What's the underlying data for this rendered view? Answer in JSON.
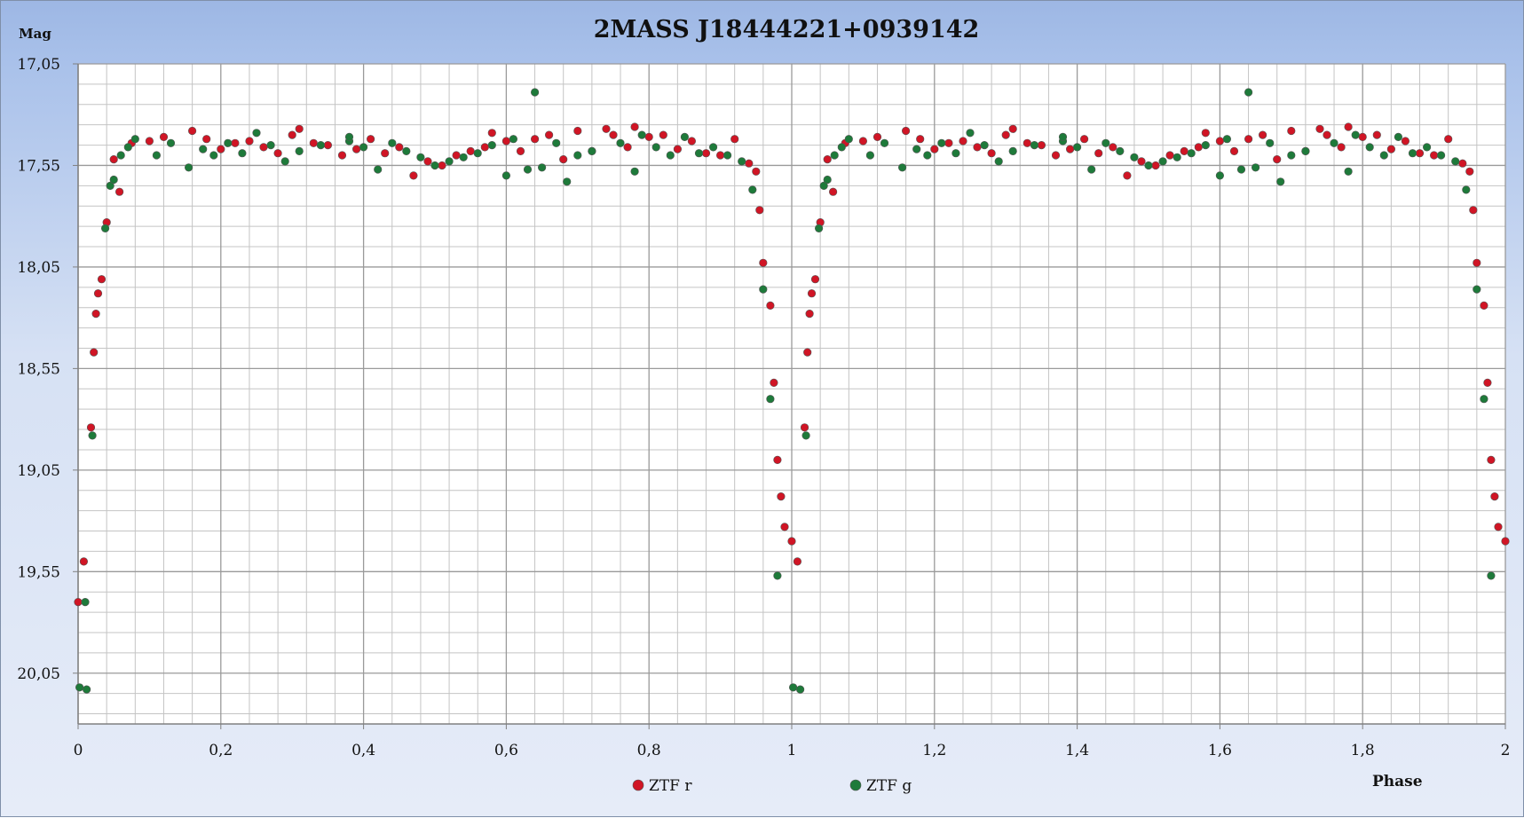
{
  "chart_data": {
    "type": "scatter",
    "title": "2MASS J18444221+0939142",
    "ylabel": "Mag",
    "xlabel": "Phase",
    "xlim": [
      0,
      2
    ],
    "ylim": [
      20.3,
      17.05
    ],
    "y_inverted": true,
    "x_ticks": [
      "0",
      "0,2",
      "0,4",
      "0,6",
      "0,8",
      "1",
      "1,2",
      "1,4",
      "1,6",
      "1,8",
      "2"
    ],
    "y_ticks": [
      "17,05",
      "17,55",
      "18,05",
      "18,55",
      "19,05",
      "19,55",
      "20,05"
    ],
    "grid": true,
    "legend_position": "bottom",
    "series": [
      {
        "name": "ZTF r",
        "color": "#d01525",
        "points": [
          [
            0.0,
            19.7
          ],
          [
            0.008,
            19.5
          ],
          [
            0.018,
            18.84
          ],
          [
            0.022,
            18.47
          ],
          [
            0.025,
            18.28
          ],
          [
            0.028,
            18.18
          ],
          [
            0.033,
            18.11
          ],
          [
            0.04,
            17.83
          ],
          [
            0.05,
            17.52
          ],
          [
            0.058,
            17.68
          ],
          [
            0.075,
            17.44
          ],
          [
            0.1,
            17.43
          ],
          [
            0.12,
            17.41
          ],
          [
            0.16,
            17.38
          ],
          [
            0.18,
            17.42
          ],
          [
            0.2,
            17.47
          ],
          [
            0.22,
            17.44
          ],
          [
            0.24,
            17.43
          ],
          [
            0.26,
            17.46
          ],
          [
            0.28,
            17.49
          ],
          [
            0.3,
            17.4
          ],
          [
            0.31,
            17.37
          ],
          [
            0.33,
            17.44
          ],
          [
            0.35,
            17.45
          ],
          [
            0.37,
            17.5
          ],
          [
            0.39,
            17.47
          ],
          [
            0.41,
            17.42
          ],
          [
            0.43,
            17.49
          ],
          [
            0.45,
            17.46
          ],
          [
            0.47,
            17.6
          ],
          [
            0.49,
            17.53
          ],
          [
            0.51,
            17.55
          ],
          [
            0.53,
            17.5
          ],
          [
            0.55,
            17.48
          ],
          [
            0.57,
            17.46
          ],
          [
            0.58,
            17.39
          ],
          [
            0.6,
            17.43
          ],
          [
            0.62,
            17.48
          ],
          [
            0.64,
            17.42
          ],
          [
            0.66,
            17.4
          ],
          [
            0.68,
            17.52
          ],
          [
            0.7,
            17.38
          ],
          [
            0.72,
            17.48
          ],
          [
            0.74,
            17.37
          ],
          [
            0.75,
            17.4
          ],
          [
            0.77,
            17.46
          ],
          [
            0.78,
            17.36
          ],
          [
            0.8,
            17.41
          ],
          [
            0.82,
            17.4
          ],
          [
            0.84,
            17.47
          ],
          [
            0.86,
            17.43
          ],
          [
            0.88,
            17.49
          ],
          [
            0.9,
            17.5
          ],
          [
            0.92,
            17.42
          ],
          [
            0.94,
            17.54
          ],
          [
            0.95,
            17.58
          ],
          [
            0.955,
            17.77
          ],
          [
            0.96,
            18.03
          ],
          [
            0.97,
            18.24
          ],
          [
            0.975,
            18.62
          ],
          [
            0.98,
            19.0
          ],
          [
            0.985,
            19.18
          ],
          [
            0.99,
            19.33
          ],
          [
            1.0,
            19.4
          ],
          [
            1.008,
            19.5
          ],
          [
            1.018,
            18.84
          ],
          [
            1.022,
            18.47
          ],
          [
            1.025,
            18.28
          ],
          [
            1.028,
            18.18
          ],
          [
            1.033,
            18.11
          ],
          [
            1.04,
            17.83
          ],
          [
            1.05,
            17.52
          ],
          [
            1.058,
            17.68
          ],
          [
            1.075,
            17.44
          ],
          [
            1.1,
            17.43
          ],
          [
            1.12,
            17.41
          ],
          [
            1.16,
            17.38
          ],
          [
            1.18,
            17.42
          ],
          [
            1.2,
            17.47
          ],
          [
            1.22,
            17.44
          ],
          [
            1.24,
            17.43
          ],
          [
            1.26,
            17.46
          ],
          [
            1.28,
            17.49
          ],
          [
            1.3,
            17.4
          ],
          [
            1.31,
            17.37
          ],
          [
            1.33,
            17.44
          ],
          [
            1.35,
            17.45
          ],
          [
            1.37,
            17.5
          ],
          [
            1.39,
            17.47
          ],
          [
            1.41,
            17.42
          ],
          [
            1.43,
            17.49
          ],
          [
            1.45,
            17.46
          ],
          [
            1.47,
            17.6
          ],
          [
            1.49,
            17.53
          ],
          [
            1.51,
            17.55
          ],
          [
            1.53,
            17.5
          ],
          [
            1.55,
            17.48
          ],
          [
            1.57,
            17.46
          ],
          [
            1.58,
            17.39
          ],
          [
            1.6,
            17.43
          ],
          [
            1.62,
            17.48
          ],
          [
            1.64,
            17.42
          ],
          [
            1.66,
            17.4
          ],
          [
            1.68,
            17.52
          ],
          [
            1.7,
            17.38
          ],
          [
            1.72,
            17.48
          ],
          [
            1.74,
            17.37
          ],
          [
            1.75,
            17.4
          ],
          [
            1.77,
            17.46
          ],
          [
            1.78,
            17.36
          ],
          [
            1.8,
            17.41
          ],
          [
            1.82,
            17.4
          ],
          [
            1.84,
            17.47
          ],
          [
            1.86,
            17.43
          ],
          [
            1.88,
            17.49
          ],
          [
            1.9,
            17.5
          ],
          [
            1.92,
            17.42
          ],
          [
            1.94,
            17.54
          ],
          [
            1.95,
            17.58
          ],
          [
            1.955,
            17.77
          ],
          [
            1.96,
            18.03
          ],
          [
            1.97,
            18.24
          ],
          [
            1.975,
            18.62
          ],
          [
            1.98,
            19.0
          ],
          [
            1.985,
            19.18
          ],
          [
            1.99,
            19.33
          ],
          [
            2.0,
            19.4
          ]
        ]
      },
      {
        "name": "ZTF g",
        "color": "#1e7a3a",
        "points": [
          [
            0.002,
            20.12
          ],
          [
            0.012,
            20.13
          ],
          [
            0.01,
            19.7
          ],
          [
            0.02,
            18.88
          ],
          [
            0.038,
            17.86
          ],
          [
            0.045,
            17.65
          ],
          [
            0.05,
            17.62
          ],
          [
            0.06,
            17.5
          ],
          [
            0.07,
            17.46
          ],
          [
            0.08,
            17.42
          ],
          [
            0.11,
            17.5
          ],
          [
            0.13,
            17.44
          ],
          [
            0.155,
            17.56
          ],
          [
            0.175,
            17.47
          ],
          [
            0.19,
            17.5
          ],
          [
            0.21,
            17.44
          ],
          [
            0.23,
            17.49
          ],
          [
            0.25,
            17.39
          ],
          [
            0.27,
            17.45
          ],
          [
            0.29,
            17.53
          ],
          [
            0.31,
            17.48
          ],
          [
            0.34,
            17.45
          ],
          [
            0.38,
            17.43
          ],
          [
            0.38,
            17.41
          ],
          [
            0.4,
            17.46
          ],
          [
            0.42,
            17.57
          ],
          [
            0.44,
            17.44
          ],
          [
            0.46,
            17.48
          ],
          [
            0.48,
            17.51
          ],
          [
            0.5,
            17.55
          ],
          [
            0.52,
            17.53
          ],
          [
            0.54,
            17.51
          ],
          [
            0.56,
            17.49
          ],
          [
            0.58,
            17.45
          ],
          [
            0.6,
            17.6
          ],
          [
            0.61,
            17.42
          ],
          [
            0.63,
            17.57
          ],
          [
            0.64,
            17.19
          ],
          [
            0.65,
            17.56
          ],
          [
            0.67,
            17.44
          ],
          [
            0.685,
            17.63
          ],
          [
            0.7,
            17.5
          ],
          [
            0.72,
            17.48
          ],
          [
            0.76,
            17.44
          ],
          [
            0.78,
            17.58
          ],
          [
            0.79,
            17.4
          ],
          [
            0.81,
            17.46
          ],
          [
            0.83,
            17.5
          ],
          [
            0.85,
            17.41
          ],
          [
            0.87,
            17.49
          ],
          [
            0.89,
            17.46
          ],
          [
            0.91,
            17.5
          ],
          [
            0.93,
            17.53
          ],
          [
            0.945,
            17.67
          ],
          [
            0.96,
            18.16
          ],
          [
            0.97,
            18.7
          ],
          [
            0.98,
            19.57
          ],
          [
            1.002,
            20.12
          ],
          [
            1.012,
            20.13
          ],
          [
            1.02,
            18.88
          ],
          [
            1.038,
            17.86
          ],
          [
            1.045,
            17.65
          ],
          [
            1.05,
            17.62
          ],
          [
            1.06,
            17.5
          ],
          [
            1.07,
            17.46
          ],
          [
            1.08,
            17.42
          ],
          [
            1.11,
            17.5
          ],
          [
            1.13,
            17.44
          ],
          [
            1.155,
            17.56
          ],
          [
            1.175,
            17.47
          ],
          [
            1.19,
            17.5
          ],
          [
            1.21,
            17.44
          ],
          [
            1.23,
            17.49
          ],
          [
            1.25,
            17.39
          ],
          [
            1.27,
            17.45
          ],
          [
            1.29,
            17.53
          ],
          [
            1.31,
            17.48
          ],
          [
            1.34,
            17.45
          ],
          [
            1.38,
            17.43
          ],
          [
            1.38,
            17.41
          ],
          [
            1.4,
            17.46
          ],
          [
            1.42,
            17.57
          ],
          [
            1.44,
            17.44
          ],
          [
            1.46,
            17.48
          ],
          [
            1.48,
            17.51
          ],
          [
            1.5,
            17.55
          ],
          [
            1.52,
            17.53
          ],
          [
            1.54,
            17.51
          ],
          [
            1.56,
            17.49
          ],
          [
            1.58,
            17.45
          ],
          [
            1.6,
            17.6
          ],
          [
            1.61,
            17.42
          ],
          [
            1.63,
            17.57
          ],
          [
            1.64,
            17.19
          ],
          [
            1.65,
            17.56
          ],
          [
            1.67,
            17.44
          ],
          [
            1.685,
            17.63
          ],
          [
            1.7,
            17.5
          ],
          [
            1.72,
            17.48
          ],
          [
            1.76,
            17.44
          ],
          [
            1.78,
            17.58
          ],
          [
            1.79,
            17.4
          ],
          [
            1.81,
            17.46
          ],
          [
            1.83,
            17.5
          ],
          [
            1.85,
            17.41
          ],
          [
            1.87,
            17.49
          ],
          [
            1.89,
            17.46
          ],
          [
            1.91,
            17.5
          ],
          [
            1.93,
            17.53
          ],
          [
            1.945,
            17.67
          ],
          [
            1.96,
            18.16
          ],
          [
            1.97,
            18.7
          ],
          [
            1.98,
            19.57
          ]
        ]
      }
    ]
  }
}
